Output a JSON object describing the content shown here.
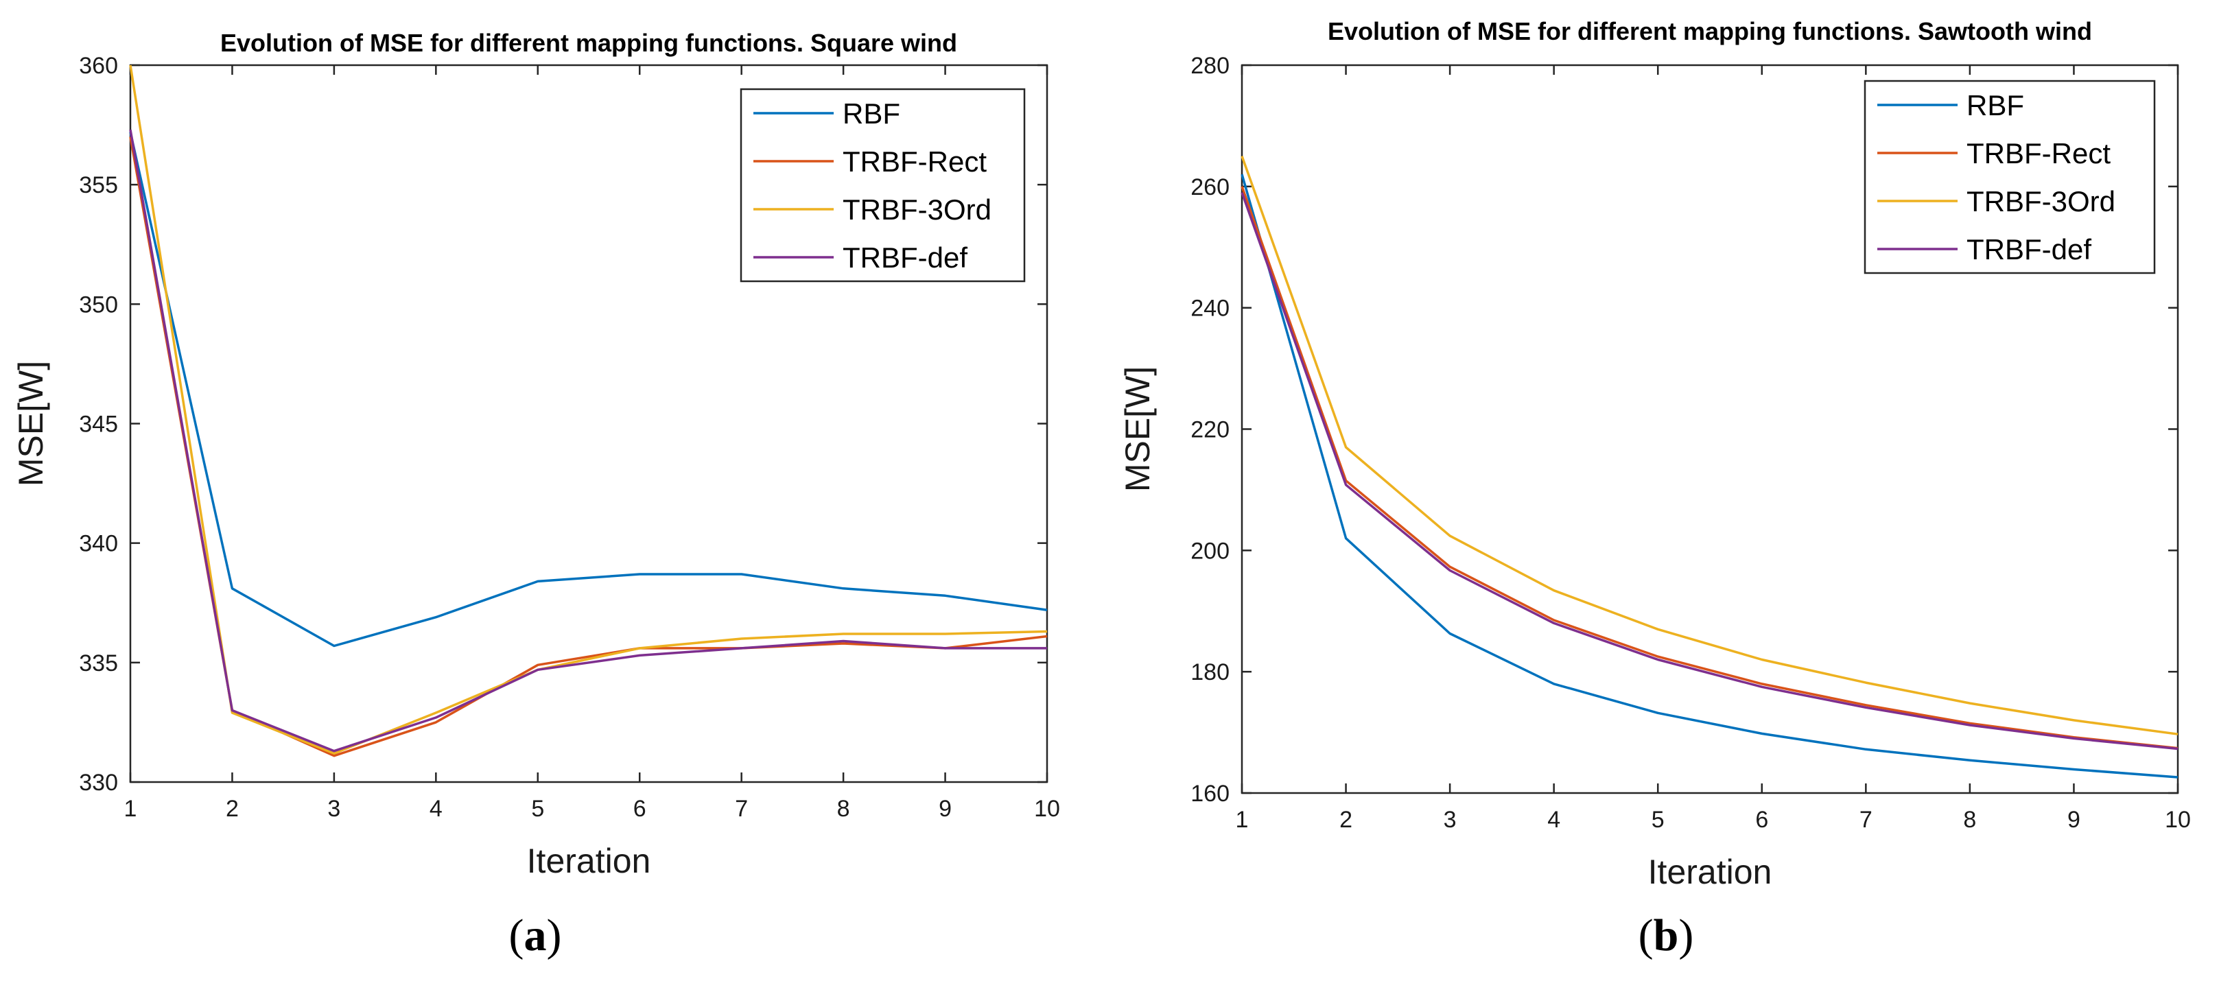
{
  "chart_data": [
    {
      "type": "line",
      "title": "Evolution of MSE for different mapping functions. Square wind",
      "xlabel": "Iteration",
      "ylabel": "MSE[W]",
      "xlim": [
        1,
        10
      ],
      "ylim": [
        330,
        360
      ],
      "xticks": [
        1,
        2,
        3,
        4,
        5,
        6,
        7,
        8,
        9,
        10
      ],
      "yticks": [
        330,
        335,
        340,
        345,
        350,
        355,
        360
      ],
      "legend_position": "top-right",
      "panel_label": {
        "open": "(",
        "letter": "a",
        "close": ")"
      },
      "x": [
        1,
        2,
        3,
        4,
        5,
        6,
        7,
        8,
        9,
        10
      ],
      "series": [
        {
          "name": "RBF",
          "color": "#0072BD",
          "values": [
            357.2,
            338.1,
            335.7,
            336.9,
            338.4,
            338.7,
            338.7,
            338.1,
            337.8,
            337.2
          ]
        },
        {
          "name": "TRBF-Rect",
          "color": "#D95319",
          "values": [
            357.0,
            333.0,
            331.1,
            332.5,
            334.9,
            335.6,
            335.6,
            335.8,
            335.6,
            336.1
          ]
        },
        {
          "name": "TRBF-3Ord",
          "color": "#EDB120",
          "values": [
            360.0,
            332.9,
            331.2,
            332.9,
            334.7,
            335.6,
            336.0,
            336.2,
            336.2,
            336.3
          ]
        },
        {
          "name": "TRBF-def",
          "color": "#7E2F8E",
          "values": [
            357.3,
            333.0,
            331.3,
            332.7,
            334.7,
            335.3,
            335.6,
            335.9,
            335.6,
            335.6
          ]
        }
      ]
    },
    {
      "type": "line",
      "title": "Evolution of MSE for different mapping functions. Sawtooth wind",
      "xlabel": "Iteration",
      "ylabel": "MSE[W]",
      "xlim": [
        1,
        10
      ],
      "ylim": [
        160,
        280
      ],
      "xticks": [
        1,
        2,
        3,
        4,
        5,
        6,
        7,
        8,
        9,
        10
      ],
      "yticks": [
        160,
        180,
        200,
        220,
        240,
        260,
        280
      ],
      "legend_position": "top-right",
      "panel_label": {
        "open": "(",
        "letter": "b",
        "close": ")"
      },
      "x": [
        1,
        2,
        3,
        4,
        5,
        6,
        7,
        8,
        9,
        10
      ],
      "series": [
        {
          "name": "RBF",
          "color": "#0072BD",
          "values": [
            262.0,
            202.0,
            186.3,
            178.0,
            173.2,
            169.8,
            167.2,
            165.4,
            163.9,
            162.6
          ]
        },
        {
          "name": "TRBF-Rect",
          "color": "#D95319",
          "values": [
            260.0,
            211.5,
            197.3,
            188.5,
            182.5,
            178.0,
            174.5,
            171.5,
            169.2,
            167.4
          ]
        },
        {
          "name": "TRBF-3Ord",
          "color": "#EDB120",
          "values": [
            265.0,
            217.0,
            202.4,
            193.4,
            187.0,
            182.0,
            178.2,
            174.8,
            172.0,
            169.7
          ]
        },
        {
          "name": "TRBF-def",
          "color": "#7E2F8E",
          "values": [
            259.0,
            210.8,
            196.7,
            188.0,
            182.0,
            177.5,
            174.1,
            171.2,
            169.0,
            167.3
          ]
        }
      ]
    }
  ]
}
